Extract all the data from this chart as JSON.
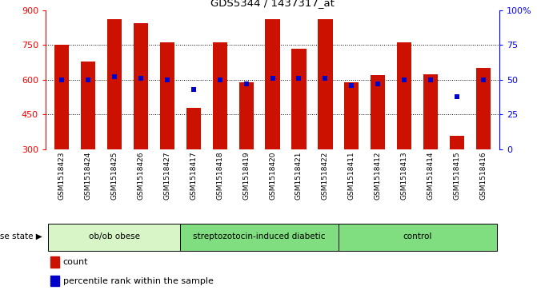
{
  "title": "GDS5344 / 1437317_at",
  "samples": [
    "GSM1518423",
    "GSM1518424",
    "GSM1518425",
    "GSM1518426",
    "GSM1518427",
    "GSM1518417",
    "GSM1518418",
    "GSM1518419",
    "GSM1518420",
    "GSM1518421",
    "GSM1518422",
    "GSM1518411",
    "GSM1518412",
    "GSM1518413",
    "GSM1518414",
    "GSM1518415",
    "GSM1518416"
  ],
  "counts": [
    750,
    680,
    860,
    845,
    760,
    480,
    760,
    590,
    860,
    735,
    860,
    590,
    620,
    760,
    625,
    360,
    650
  ],
  "percentile_ranks": [
    50,
    50,
    52,
    51,
    50,
    43,
    50,
    47,
    51,
    51,
    51,
    46,
    47,
    50,
    50,
    38,
    50
  ],
  "bar_color": "#cc1100",
  "dot_color": "#0000cc",
  "ylim_left": [
    300,
    900
  ],
  "ylim_right": [
    0,
    100
  ],
  "yticks_left": [
    300,
    450,
    600,
    750,
    900
  ],
  "yticks_right": [
    0,
    25,
    50,
    75,
    100
  ],
  "ytick_labels_right": [
    "0",
    "25",
    "50",
    "75",
    "100%"
  ],
  "groups": [
    {
      "label": "ob/ob obese",
      "start": 0,
      "end": 5,
      "color": "#d8f5c8"
    },
    {
      "label": "streptozotocin-induced diabetic",
      "start": 5,
      "end": 11,
      "color": "#80dd80"
    },
    {
      "label": "control",
      "start": 11,
      "end": 17,
      "color": "#80dd80"
    }
  ],
  "disease_state_label": "disease state",
  "legend_count_label": "count",
  "legend_pct_label": "percentile rank within the sample",
  "xtick_bg_color": "#c8c8c8",
  "plot_bg_color": "#ffffff",
  "fig_bg_color": "#ffffff"
}
